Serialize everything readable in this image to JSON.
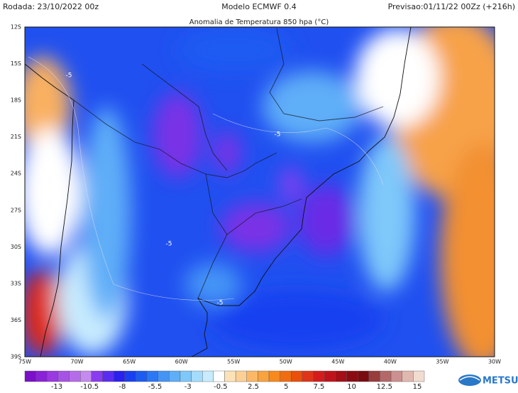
{
  "header": {
    "run": "Rodada: 23/10/2022 00z",
    "model": "Modelo ECMWF 0.4",
    "forecast": "Previsao:01/11/22 00Zz (+216h)"
  },
  "map": {
    "title": "Anomalia de Temperatura 850 hpa (°C)",
    "lat_labels": [
      "12S",
      "15S",
      "18S",
      "21S",
      "24S",
      "27S",
      "30S",
      "33S",
      "36S",
      "39S"
    ],
    "lon_labels": [
      "75W",
      "70W",
      "65W",
      "60W",
      "55W",
      "50W",
      "45W",
      "40W",
      "35W",
      "30W"
    ],
    "contour_labels": [
      "-5",
      "-5",
      "-5",
      "-5"
    ]
  },
  "colorbar": {
    "labels": [
      -13,
      -10.5,
      -8,
      -5.5,
      -3,
      -0.5,
      2.5,
      5,
      7.5,
      10,
      12.5,
      15
    ],
    "colors": [
      "#7a10c8",
      "#8a22d8",
      "#9a3ae0",
      "#a752e6",
      "#b56cea",
      "#c48af0",
      "#8a3cf0",
      "#5a2cf2",
      "#2a20f0",
      "#1840f0",
      "#1c5cf2",
      "#2c78f4",
      "#4494f6",
      "#5eaef8",
      "#7ec8fa",
      "#a4dcfc",
      "#c8ecfe",
      "#ffffff",
      "#fde2b8",
      "#fcd094",
      "#fbb866",
      "#f9a33e",
      "#f68a1e",
      "#f06c10",
      "#e8500c",
      "#e03418",
      "#d41c1c",
      "#c0121a",
      "#a40e16",
      "#8a0c12",
      "#7a0c10",
      "#983c3c",
      "#b46868",
      "#cc9090",
      "#e0b8b0",
      "#f2dcd0"
    ]
  },
  "logo": {
    "text": "METSUL"
  }
}
